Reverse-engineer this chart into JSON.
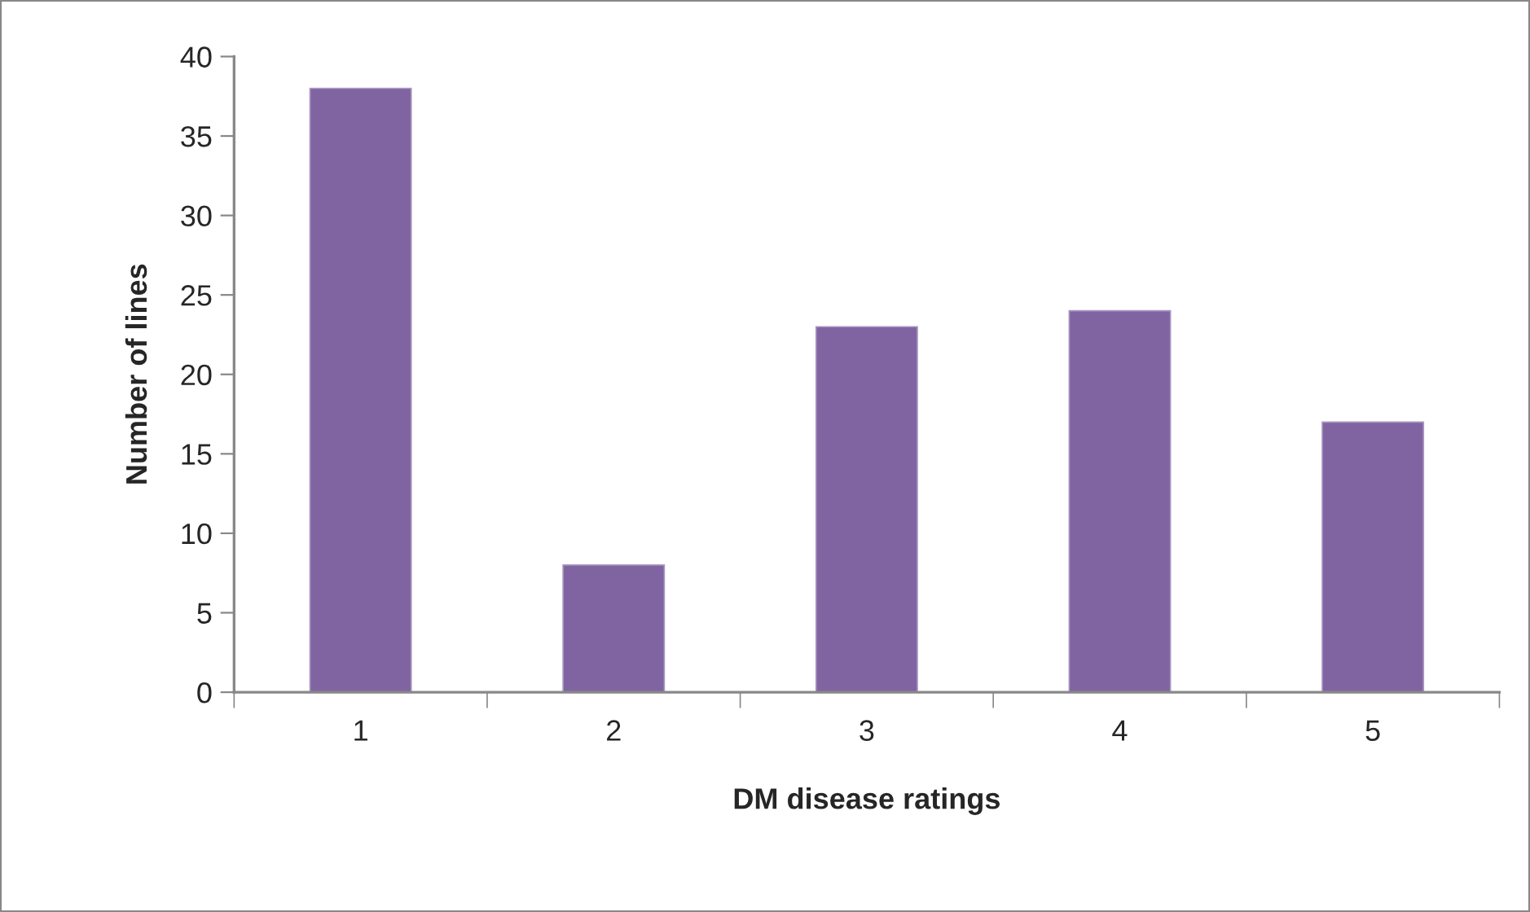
{
  "chart_data": {
    "type": "bar",
    "xlabel": "DM disease ratings",
    "ylabel": "Number of lines",
    "categories": [
      "1",
      "2",
      "3",
      "4",
      "5"
    ],
    "values": [
      38,
      8,
      23,
      24,
      17
    ],
    "color": "#8064a2",
    "ylim": [
      0,
      40
    ],
    "yticks": [
      0,
      5,
      10,
      15,
      20,
      25,
      30,
      35,
      40
    ],
    "grid": false
  }
}
